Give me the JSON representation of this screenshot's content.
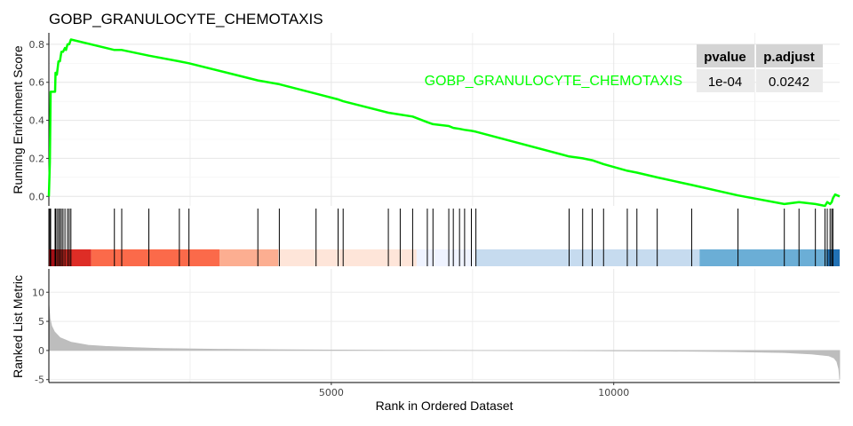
{
  "chart_data": {
    "type": "line",
    "title": "GOBP_GRANULOCYTE_CHEMOTAXIS",
    "xlabel": "Rank in Ordered Dataset",
    "xlim": [
      0,
      14000
    ],
    "x_ticks": [
      "5000",
      "10000"
    ],
    "x_tick_values": [
      5000,
      10000
    ],
    "panels": {
      "enrichment": {
        "ylabel": "Running Enrichment Score",
        "ylim": [
          -0.05,
          0.86
        ],
        "y_ticks": [
          "0.0",
          "0.2",
          "0.4",
          "0.6",
          "0.8"
        ],
        "y_tick_values": [
          0.0,
          0.2,
          0.4,
          0.6,
          0.8
        ],
        "series": [
          {
            "name": "GOBP_GRANULOCYTE_CHEMOTAXIS",
            "color": "#00ff00",
            "x": [
              0,
              18,
              32,
              36,
              110,
              118,
              142,
              170,
              195,
              222,
              250,
              285,
              303,
              330,
              360,
              390,
              1160,
              1290,
              1770,
              2310,
              2480,
              3700,
              4080,
              4730,
              5120,
              5210,
              6010,
              6220,
              6440,
              6700,
              6800,
              7080,
              7160,
              7270,
              7360,
              7480,
              7560,
              9210,
              9450,
              9620,
              9820,
              10240,
              10410,
              10770,
              11380,
              12200,
              13020,
              13280,
              13570,
              13740,
              13780,
              13830,
              13860,
              13880,
              13920,
              14000
            ],
            "y": [
              0.0,
              0.18,
              0.55,
              0.55,
              0.55,
              0.65,
              0.64,
              0.71,
              0.71,
              0.76,
              0.76,
              0.78,
              0.77,
              0.8,
              0.8,
              0.825,
              0.77,
              0.77,
              0.74,
              0.71,
              0.7,
              0.61,
              0.59,
              0.54,
              0.51,
              0.5,
              0.44,
              0.43,
              0.42,
              0.39,
              0.38,
              0.37,
              0.36,
              0.355,
              0.35,
              0.345,
              0.34,
              0.21,
              0.2,
              0.19,
              0.17,
              0.135,
              0.125,
              0.1,
              0.06,
              0.005,
              -0.04,
              -0.03,
              -0.04,
              -0.05,
              -0.03,
              -0.04,
              -0.03,
              -0.01,
              0.01,
              0.0
            ]
          }
        ]
      },
      "hits": {
        "x": [
          18,
          32,
          110,
          118,
          142,
          170,
          195,
          222,
          250,
          285,
          330,
          360,
          390,
          1160,
          1290,
          1770,
          2310,
          2480,
          3700,
          4080,
          4730,
          5120,
          5210,
          6010,
          6220,
          6440,
          6700,
          6800,
          7080,
          7160,
          7270,
          7360,
          7480,
          7560,
          9210,
          9450,
          9620,
          9820,
          10240,
          10410,
          10770,
          11380,
          12200,
          13020,
          13280,
          13570,
          13740,
          13780,
          13830,
          13860,
          13880
        ]
      },
      "color_bar": {
        "segments": [
          {
            "start": 0,
            "end": 110,
            "color": "#a50f15"
          },
          {
            "start": 110,
            "end": 750,
            "color": "#de2d26"
          },
          {
            "start": 750,
            "end": 3020,
            "color": "#fb6a4a"
          },
          {
            "start": 3020,
            "end": 4060,
            "color": "#fcae91"
          },
          {
            "start": 4060,
            "end": 6510,
            "color": "#fee5d9"
          },
          {
            "start": 6510,
            "end": 7560,
            "color": "#eff3ff"
          },
          {
            "start": 7560,
            "end": 11520,
            "color": "#c6dbef"
          },
          {
            "start": 11520,
            "end": 13780,
            "color": "#6baed6"
          },
          {
            "start": 13780,
            "end": 14000,
            "color": "#2171b5"
          }
        ]
      },
      "ranked": {
        "ylabel": "Ranked List Metric",
        "ylim": [
          -5.5,
          14
        ],
        "y_ticks": [
          "-5",
          "0",
          "5",
          "10"
        ],
        "y_tick_values": [
          -5,
          0,
          5,
          10
        ],
        "color": "#bdbdbd",
        "x": [
          0,
          5,
          20,
          50,
          100,
          200,
          400,
          700,
          1000,
          1500,
          2000,
          3000,
          4000,
          5000,
          6000,
          7000,
          8000,
          9000,
          10000,
          11000,
          12000,
          13000,
          13500,
          13800,
          13900,
          13950,
          13985,
          14000
        ],
        "y": [
          8,
          7.5,
          5.5,
          4.2,
          3.2,
          2.2,
          1.4,
          0.9,
          0.7,
          0.5,
          0.35,
          0.22,
          0.14,
          0.08,
          0.04,
          0.01,
          -0.01,
          -0.03,
          -0.06,
          -0.1,
          -0.18,
          -0.35,
          -0.6,
          -0.9,
          -1.3,
          -1.9,
          -3.2,
          -5.0
        ]
      }
    },
    "stats_table": {
      "headers": [
        "pvalue",
        "p.adjust"
      ],
      "row": [
        "1e-04",
        "0.0242"
      ]
    }
  }
}
